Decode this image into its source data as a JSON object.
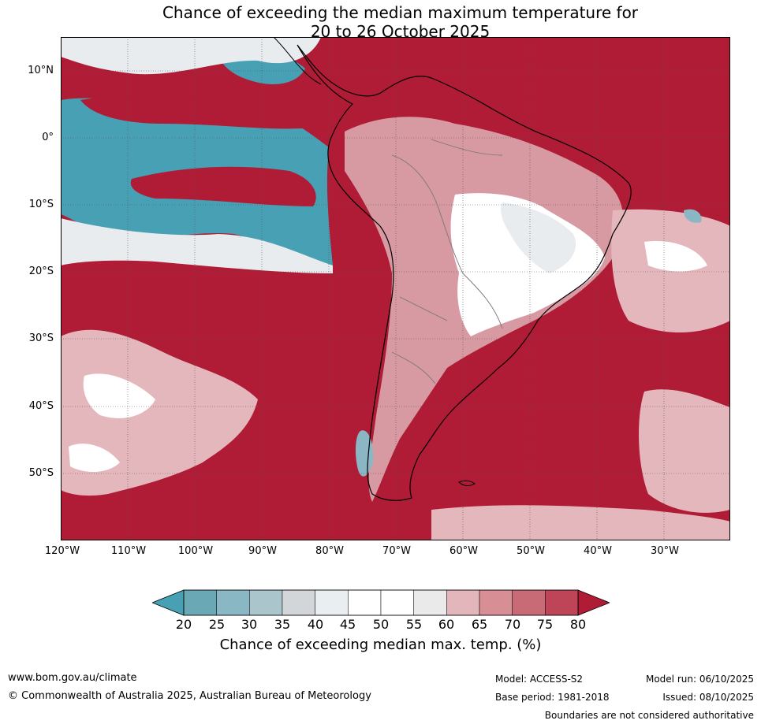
{
  "title_line1": "Chance of exceeding the median maximum temperature for",
  "title_line2": "20 to 26 October 2025",
  "map": {
    "lat_labels": [
      "10°N",
      "0°",
      "10°S",
      "20°S",
      "30°S",
      "40°S",
      "50°S"
    ],
    "lon_labels": [
      "120°W",
      "110°W",
      "100°W",
      "90°W",
      "80°W",
      "70°W",
      "60°W",
      "50°W",
      "40°W",
      "30°W"
    ],
    "colors": {
      "ocean_high": "#b01b35",
      "mid_red": "#c24558",
      "pink": "#d89aa2",
      "light_pink": "#e4b7bc",
      "white": "#ffffff",
      "light_gray": "#e8ecee",
      "gray": "#d4d8da",
      "teal_light": "#8bb7c4",
      "teal": "#48a0b4"
    }
  },
  "colorbar": {
    "ticks": [
      "20",
      "25",
      "30",
      "35",
      "40",
      "45",
      "50",
      "55",
      "60",
      "65",
      "70",
      "75",
      "80"
    ],
    "colors": [
      "#6aa8b5",
      "#8ab7c4",
      "#aac5cb",
      "#d3d6d8",
      "#e9eef0",
      "#ffffff",
      "#ffffff",
      "#ebeaeb",
      "#e3b6bb",
      "#d78e95",
      "#c86b76",
      "#be4557"
    ],
    "under_color": "#48a0b4",
    "over_color": "#b01b35",
    "label": "Chance of exceeding median max. temp. (%)"
  },
  "footer": {
    "website": "www.bom.gov.au/climate",
    "copyright": "© Commonwealth of Australia 2025, Australian Bureau of Meteorology",
    "model": "Model: ACCESS-S2",
    "base_period": "Base period: 1981-2018",
    "model_run": "Model run: 06/10/2025",
    "issued": "Issued: 08/10/2025",
    "disclaimer": "Boundaries are not considered authoritative"
  }
}
